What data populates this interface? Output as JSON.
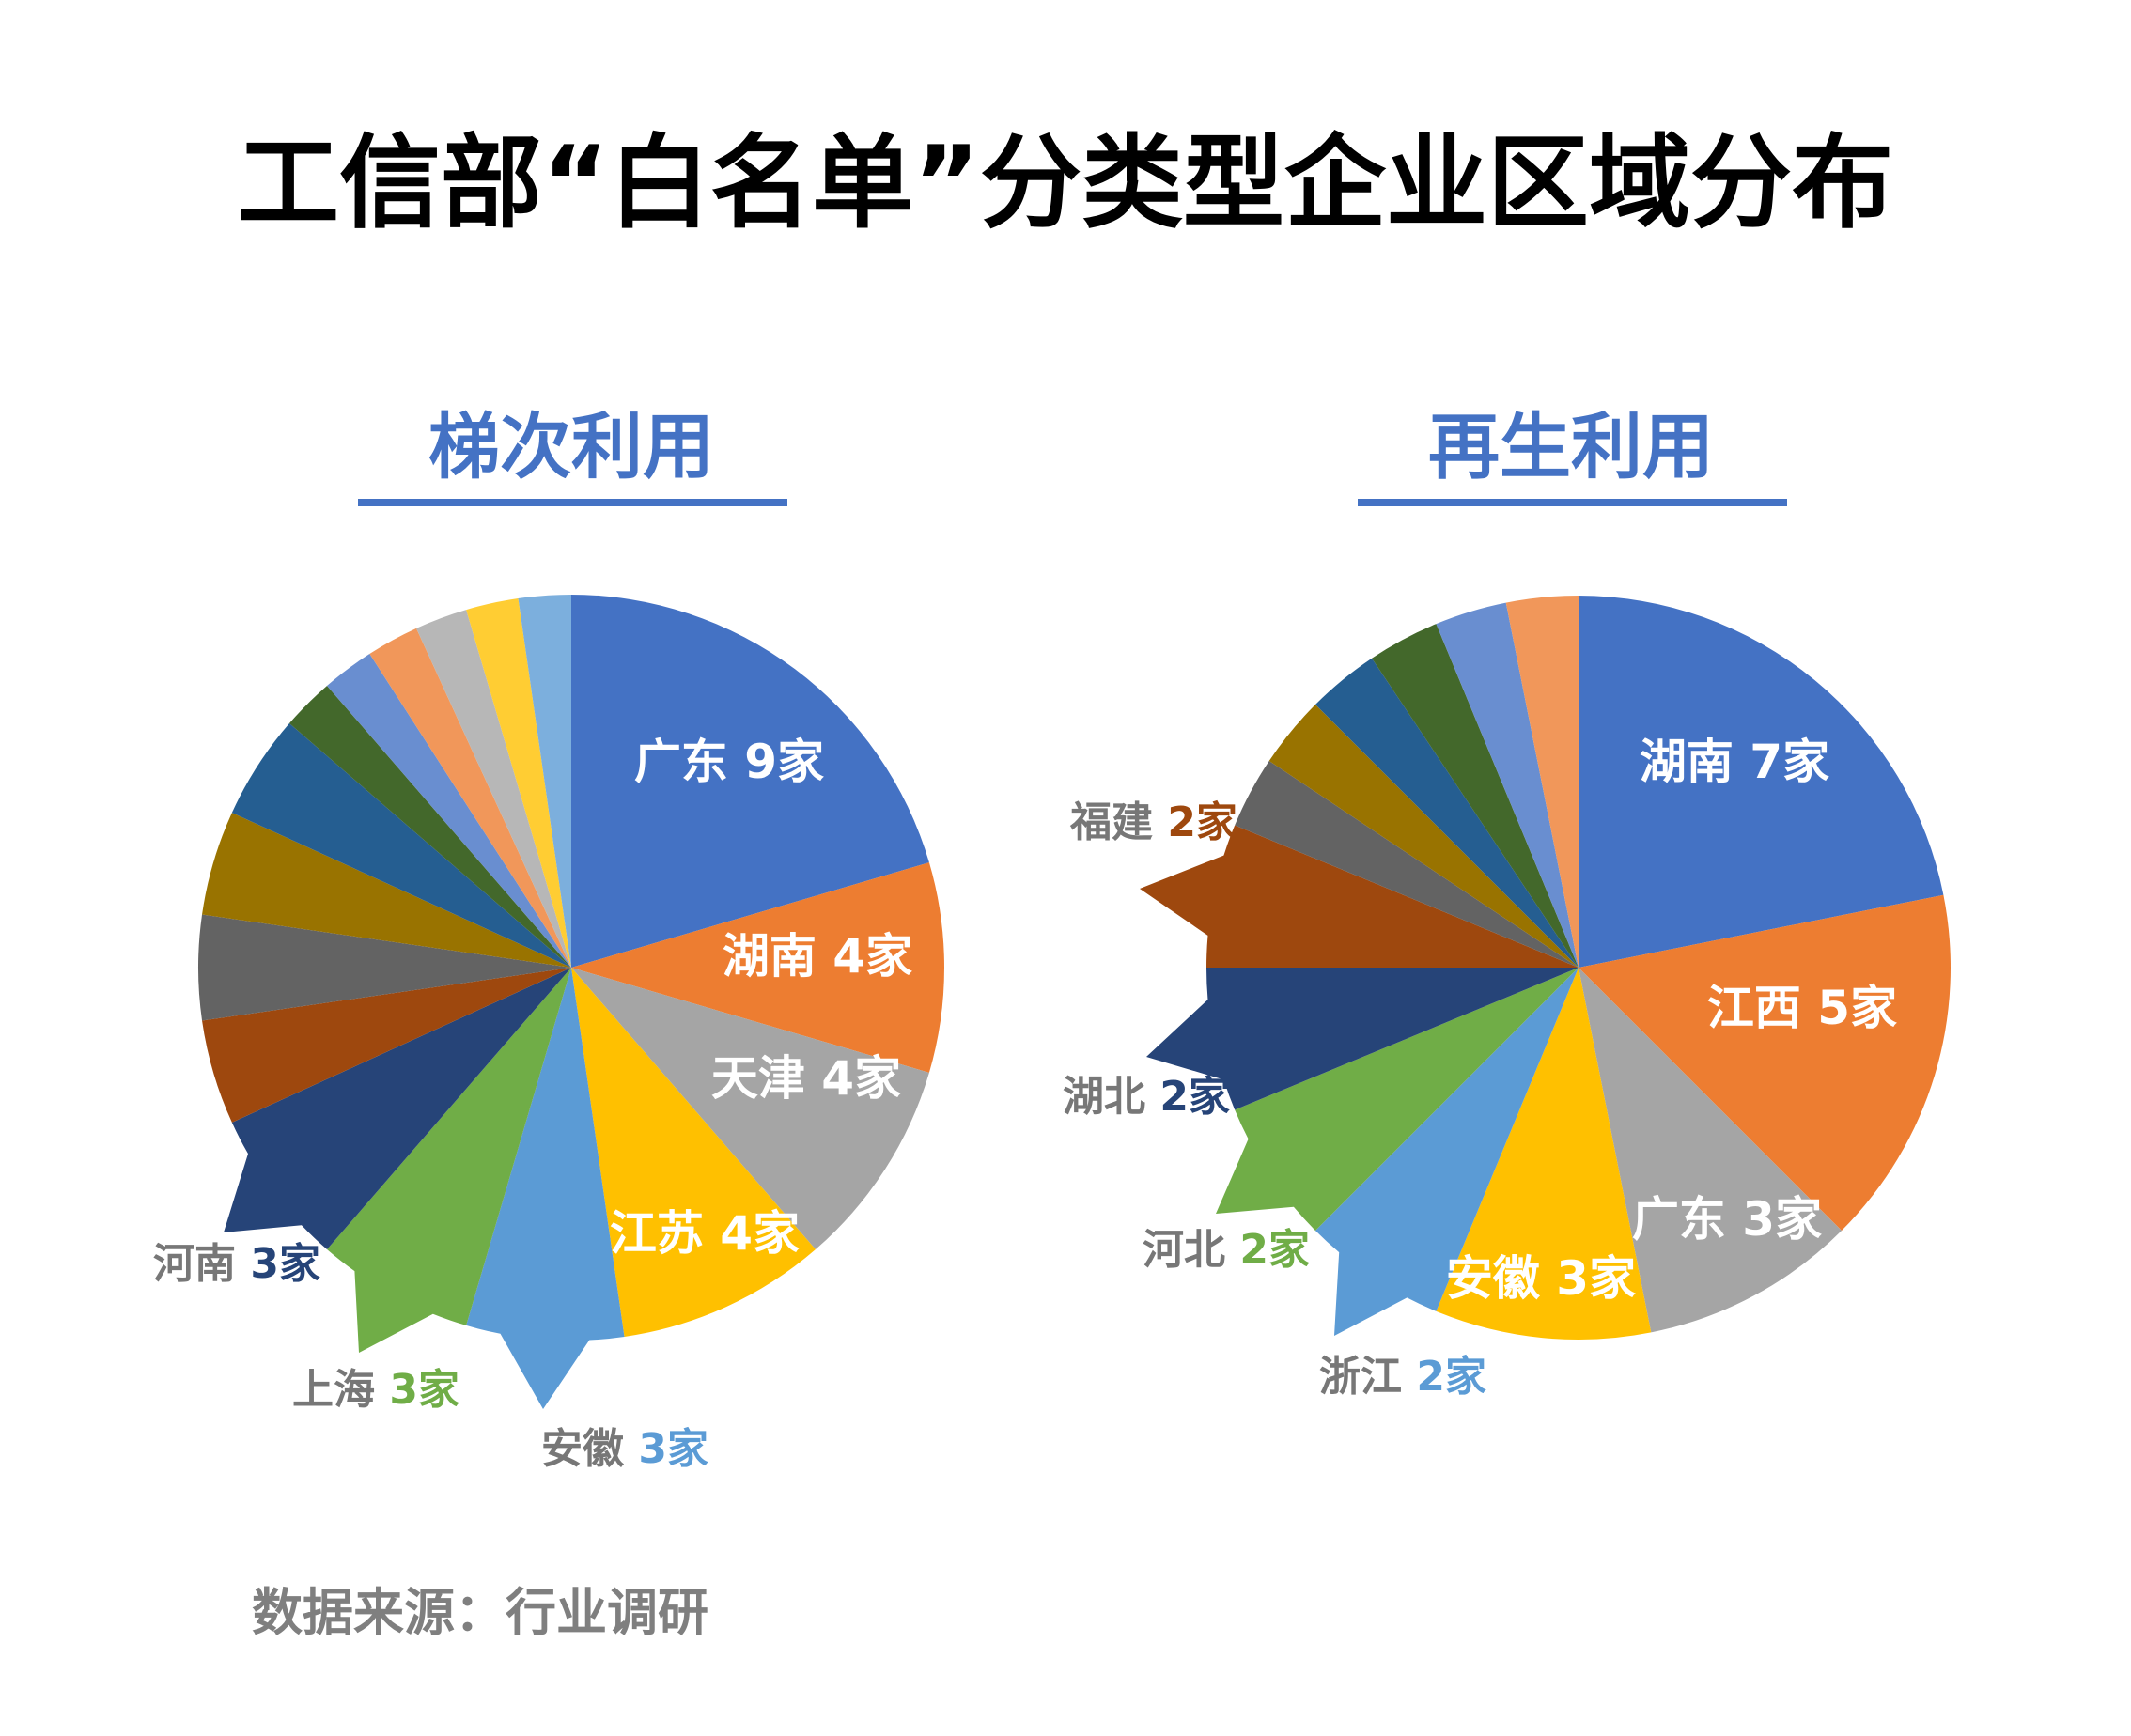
{
  "title": "工信部“白名单”分类型企业区域分布",
  "source": "数据来源：行业调研",
  "colors": {
    "heading": "#4472C4",
    "text_grey": "#777777"
  },
  "chart_data": [
    {
      "type": "pie",
      "title": "梯次利用",
      "unit": "家",
      "slices": [
        {
          "label": "广东",
          "value": 9,
          "color": "#4472C4",
          "shown": "广东 9家",
          "show": "inside"
        },
        {
          "label": "湖南",
          "value": 4,
          "color": "#ED7D31",
          "shown": "湖南 4家",
          "show": "inside"
        },
        {
          "label": "天津",
          "value": 4,
          "color": "#A5A5A5",
          "shown": "天津 4家",
          "show": "inside"
        },
        {
          "label": "江苏",
          "value": 4,
          "color": "#FFC000",
          "shown": "江苏 4家",
          "show": "inside"
        },
        {
          "label": "安徽",
          "value": 3,
          "color": "#5B9BD5",
          "name_text": "安徽",
          "value_text": "3家",
          "show": "callout"
        },
        {
          "label": "上海",
          "value": 3,
          "color": "#70AD47",
          "name_text": "上海",
          "value_text": "3家",
          "show": "callout"
        },
        {
          "label": "河南",
          "value": 3,
          "color": "#264478",
          "name_text": "河南",
          "value_text": "3家",
          "show": "callout"
        },
        {
          "value": 2,
          "color": "#9E480E",
          "show": "none"
        },
        {
          "value": 2,
          "color": "#636363",
          "show": "none"
        },
        {
          "value": 2,
          "color": "#997300",
          "show": "none"
        },
        {
          "value": 2,
          "color": "#255E91",
          "show": "none"
        },
        {
          "value": 1,
          "color": "#43682B",
          "show": "none"
        },
        {
          "value": 1,
          "color": "#698ED0",
          "show": "none"
        },
        {
          "value": 1,
          "color": "#F1975A",
          "show": "none"
        },
        {
          "value": 1,
          "color": "#B7B7B7",
          "show": "none"
        },
        {
          "value": 1,
          "color": "#FFCD33",
          "show": "none"
        },
        {
          "value": 1,
          "color": "#7CAFDD",
          "show": "none"
        }
      ]
    },
    {
      "type": "pie",
      "title": "再生利用",
      "unit": "家",
      "slices": [
        {
          "label": "湖南",
          "value": 7,
          "color": "#4472C4",
          "shown": "湖南 7家",
          "show": "inside"
        },
        {
          "label": "江西",
          "value": 5,
          "color": "#ED7D31",
          "shown": "江西 5家",
          "show": "inside"
        },
        {
          "label": "广东",
          "value": 3,
          "color": "#A5A5A5",
          "shown": "广东 3家",
          "show": "inside"
        },
        {
          "label": "安徽",
          "value": 3,
          "color": "#FFC000",
          "shown": "安徽 3家",
          "show": "inside"
        },
        {
          "label": "浙江",
          "value": 2,
          "color": "#5B9BD5",
          "name_text": "浙江",
          "value_text": "2家",
          "show": "callout"
        },
        {
          "label": "河北",
          "value": 2,
          "color": "#70AD47",
          "name_text": "河北",
          "value_text": "2家",
          "show": "callout"
        },
        {
          "label": "湖北",
          "value": 2,
          "color": "#264478",
          "name_text": "湖北",
          "value_text": "2家",
          "show": "callout"
        },
        {
          "label": "福建",
          "value": 2,
          "color": "#9E480E",
          "name_text": "福建",
          "value_text": "2家",
          "show": "callout"
        },
        {
          "value": 1,
          "color": "#636363",
          "show": "none"
        },
        {
          "value": 1,
          "color": "#997300",
          "show": "none"
        },
        {
          "value": 1,
          "color": "#255E91",
          "show": "none"
        },
        {
          "value": 1,
          "color": "#43682B",
          "show": "none"
        },
        {
          "value": 1,
          "color": "#698ED0",
          "show": "none"
        },
        {
          "value": 1,
          "color": "#F1975A",
          "show": "none"
        }
      ]
    }
  ]
}
